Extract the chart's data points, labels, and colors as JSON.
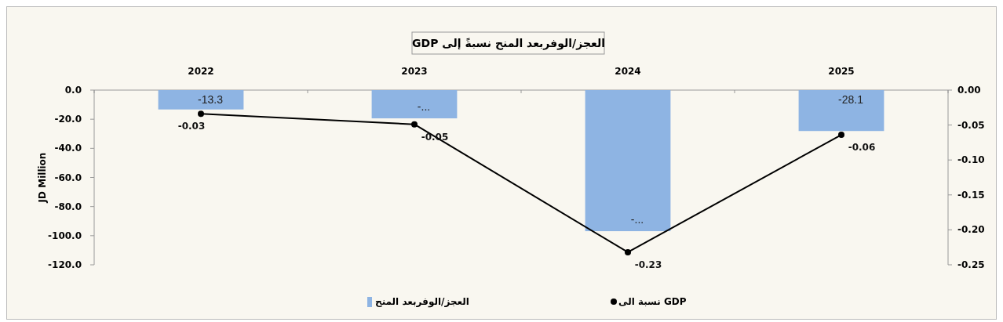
{
  "chart_data": {
    "type": "bar",
    "title": "العجز/الوفربعد المنح نسبةً إلى GDP",
    "ylabel": "JD Million",
    "categories": [
      "2022",
      "2023",
      "2024",
      "2025"
    ],
    "series": [
      {
        "name": "العجز/الوفربعد المنح",
        "color": "#8eb4e3",
        "values": [
          -13.3,
          -19.4,
          -96.9,
          -28.1
        ],
        "value_labels": [
          "-13.3",
          "-...",
          "-...",
          "-28.1"
        ]
      },
      {
        "name": "نسبة الى GDP",
        "type": "line",
        "axis": "y2",
        "color": "#000000",
        "values": [
          -0.034,
          -0.049,
          -0.232,
          -0.064
        ],
        "value_labels": [
          "-0.03",
          "-0.05",
          "-0.23",
          "-0.06"
        ]
      }
    ],
    "ylim": [
      -120,
      0
    ],
    "yticks": [
      {
        "value": 0,
        "label": "0.0"
      },
      {
        "value": -20,
        "label": "-20.0"
      },
      {
        "value": -40,
        "label": "-40.0"
      },
      {
        "value": -60,
        "label": "-60.0"
      },
      {
        "value": -80,
        "label": "-80.0"
      },
      {
        "value": -100,
        "label": "-100.0"
      },
      {
        "value": -120,
        "label": "-120.0"
      }
    ],
    "y2lim": [
      -0.25,
      0
    ],
    "y2ticks": [
      {
        "value": 0,
        "label": "0.00"
      },
      {
        "value": -0.05,
        "label": "-0.05"
      },
      {
        "value": -0.1,
        "label": "-0.10"
      },
      {
        "value": -0.15,
        "label": "-0.15"
      },
      {
        "value": -0.2,
        "label": "-0.20"
      },
      {
        "value": -0.25,
        "label": "-0.25"
      }
    ],
    "grid": false,
    "legend": "bottom",
    "marker": "circle",
    "line_style": "solid"
  }
}
